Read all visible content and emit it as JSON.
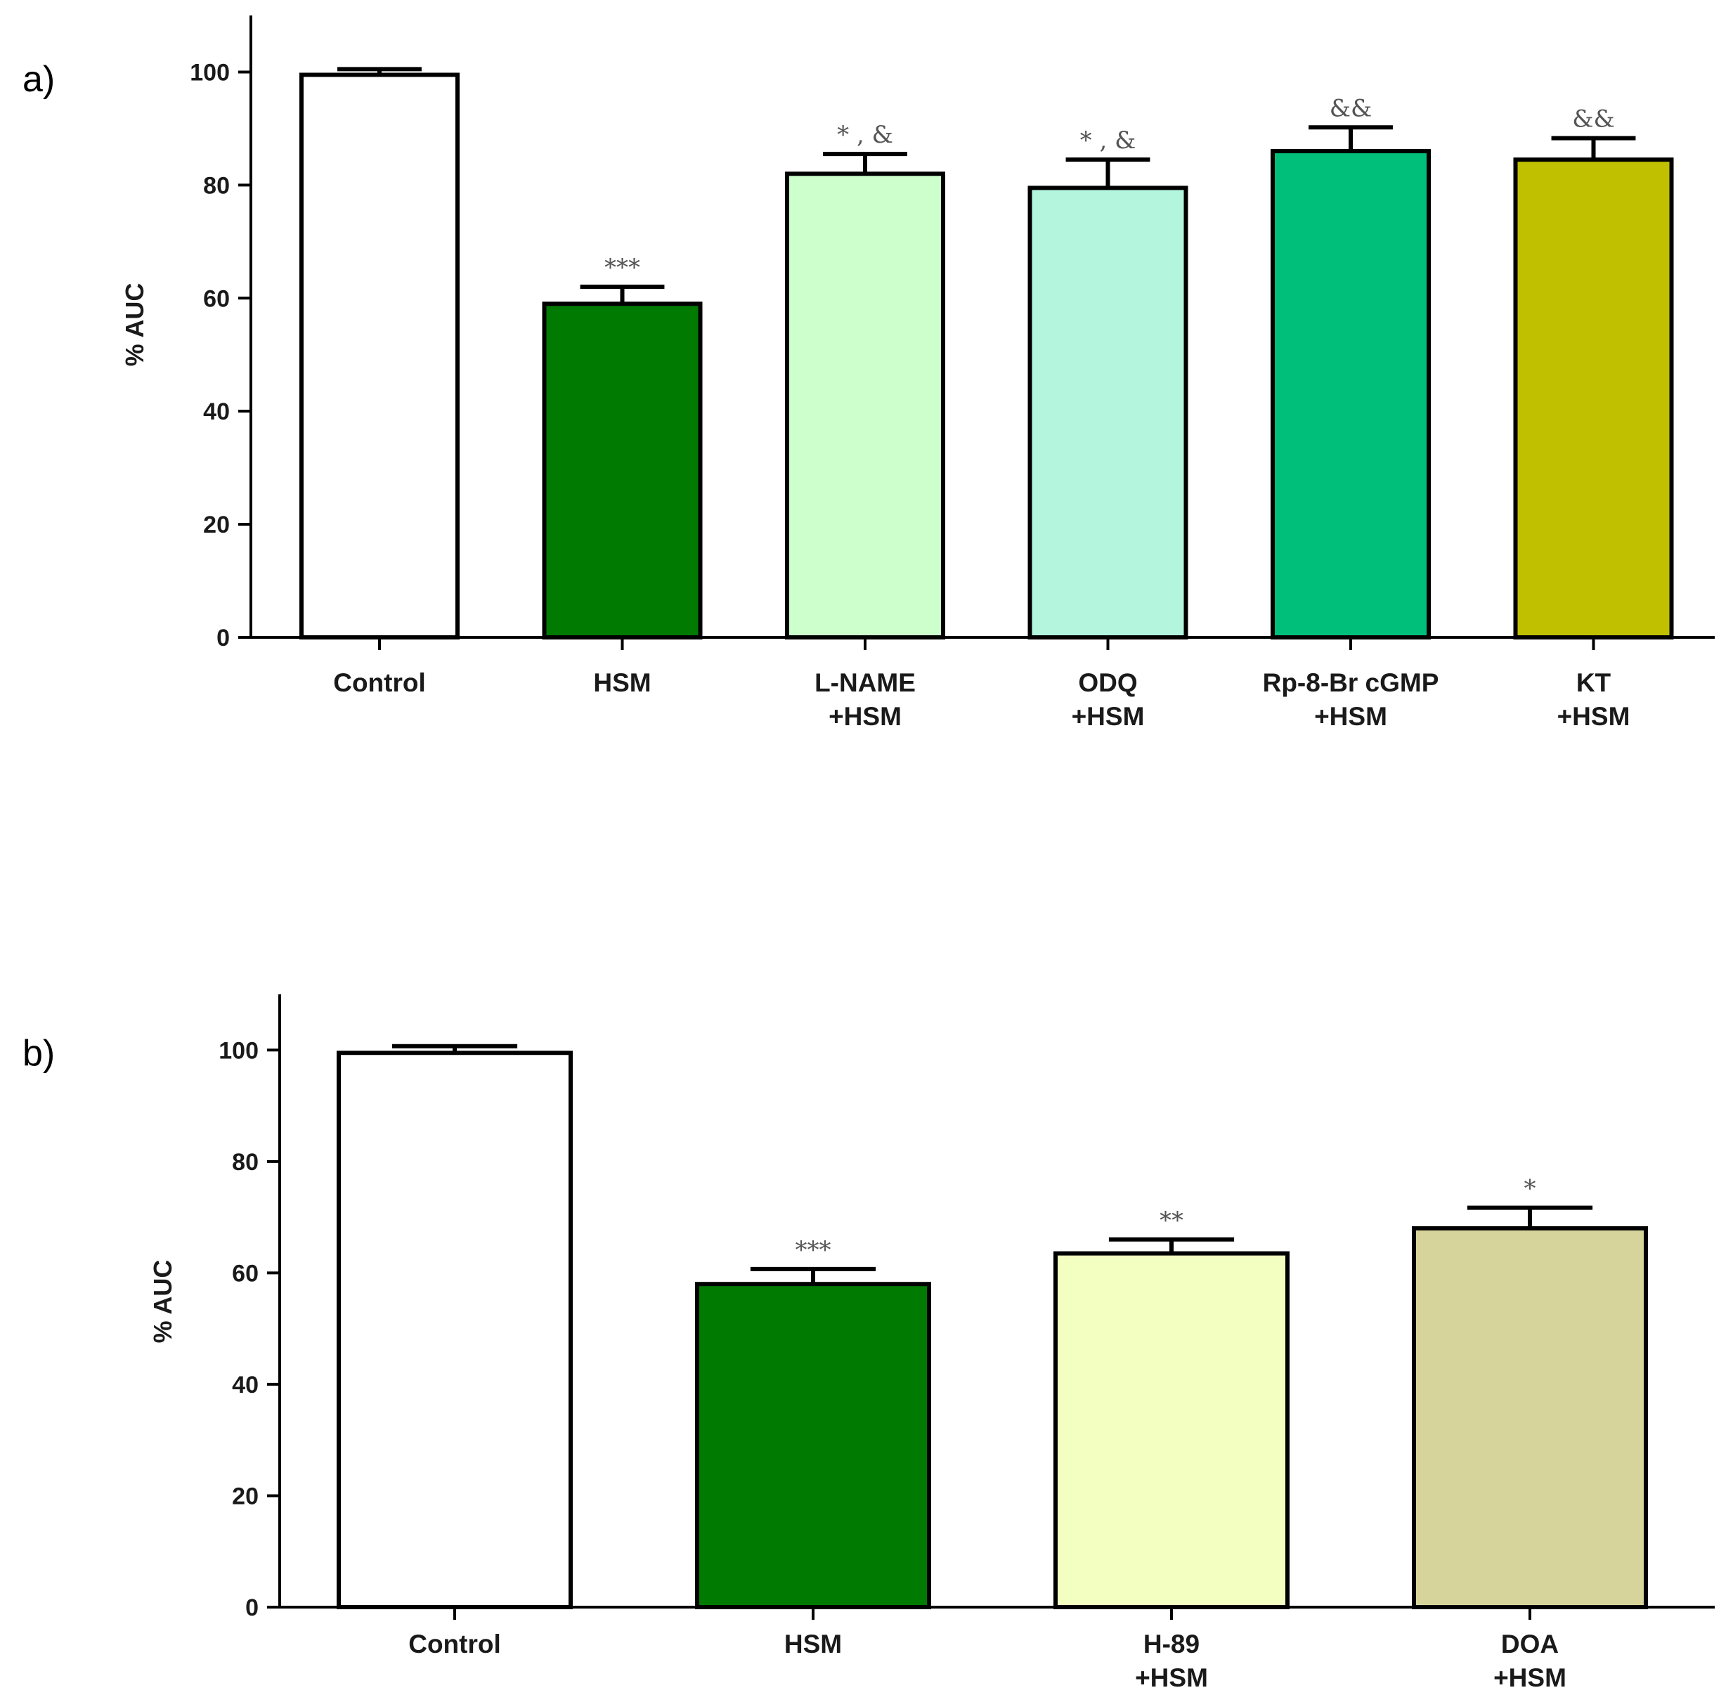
{
  "chart_data": [
    {
      "type": "bar",
      "panel_label": "a)",
      "ylabel": "% AUC",
      "ylim": [
        0,
        110
      ],
      "yticks": [
        0,
        20,
        40,
        60,
        80,
        100
      ],
      "categories": [
        {
          "line1": "Control",
          "line2": ""
        },
        {
          "line1": "HSM",
          "line2": ""
        },
        {
          "line1": "L-NAME",
          "line2": "+HSM"
        },
        {
          "line1": "ODQ",
          "line2": "+HSM"
        },
        {
          "line1": "Rp-8-Br cGMP",
          "line2": "+HSM"
        },
        {
          "line1": "KT",
          "line2": "+HSM"
        }
      ],
      "values": [
        99.5,
        59,
        82,
        79.5,
        86,
        84.5
      ],
      "errors": [
        1,
        3,
        3.5,
        5,
        4.2,
        3.8
      ],
      "significance": [
        "",
        "***",
        "* , &",
        "* , &",
        "&&",
        "&&"
      ],
      "colors": [
        "#ffffff",
        "#007a00",
        "#ccffcc",
        "#b3f5dd",
        "#00bf7a",
        "#c0c000"
      ]
    },
    {
      "type": "bar",
      "panel_label": "b)",
      "ylabel": "% AUC",
      "ylim": [
        0,
        110
      ],
      "yticks": [
        0,
        20,
        40,
        60,
        80,
        100
      ],
      "categories": [
        {
          "line1": "Control",
          "line2": ""
        },
        {
          "line1": "HSM",
          "line2": ""
        },
        {
          "line1": "H-89",
          "line2": "+HSM"
        },
        {
          "line1": "DOA",
          "line2": "+HSM"
        }
      ],
      "values": [
        99.5,
        58,
        63.5,
        68
      ],
      "errors": [
        1.2,
        2.7,
        2.5,
        3.7
      ],
      "significance": [
        "",
        "***",
        "**",
        "*"
      ],
      "colors": [
        "#ffffff",
        "#007a00",
        "#f2ffc0",
        "#d6d49a"
      ]
    }
  ]
}
